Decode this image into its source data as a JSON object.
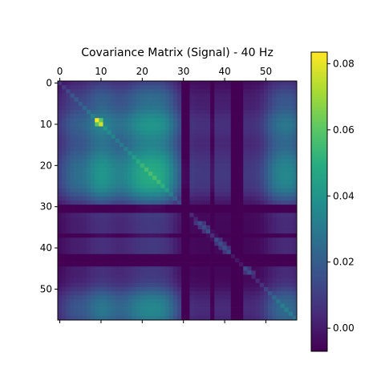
{
  "chart_data": {
    "type": "heatmap",
    "title": "Covariance Matrix (Signal) - 40 Hz",
    "xlabel": "",
    "ylabel": "",
    "size": 58,
    "x_ticks": [
      0,
      10,
      20,
      30,
      40,
      50
    ],
    "y_ticks": [
      0,
      10,
      20,
      30,
      40,
      50
    ],
    "x_tick_position": "top",
    "colormap": "viridis",
    "color_range": [
      -0.007,
      0.0835
    ],
    "colorbar_ticks": [
      0.0,
      0.02,
      0.04,
      0.06,
      0.08
    ],
    "colorbar_tick_labels": [
      "0.00",
      "0.02",
      "0.04",
      "0.06",
      "0.08"
    ],
    "approximate_description": {
      "note": "values estimated from colors; symmetric matrix",
      "high_block_rows": [
        7,
        13
      ],
      "peak_cells": [
        [
          9,
          9,
          0.083
        ],
        [
          10,
          10,
          0.078
        ]
      ],
      "typical_range": [
        -0.005,
        0.05
      ]
    }
  }
}
